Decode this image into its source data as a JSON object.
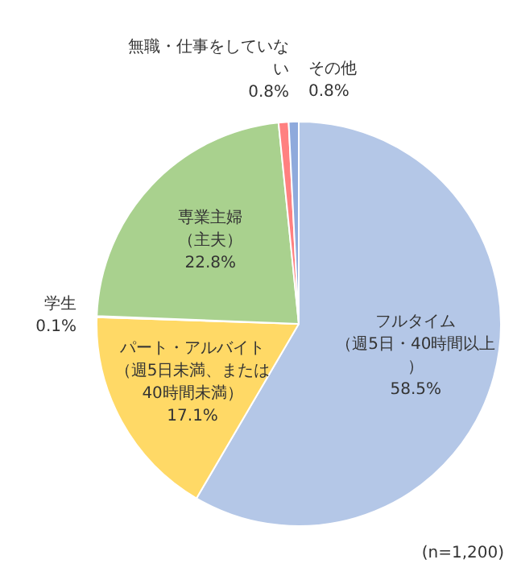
{
  "chart_data": {
    "type": "pie",
    "categories": [
      "フルタイム（週5日・40時間以上）",
      "パート・アルバイト（週5日未満、または40時間未満）",
      "学生",
      "専業主婦（主夫）",
      "無職・仕事をしていない",
      "その他"
    ],
    "values": [
      58.5,
      17.1,
      0.1,
      22.8,
      0.8,
      0.8
    ],
    "value_labels": [
      "58.5%",
      "17.1%",
      "0.1%",
      "22.8%",
      "0.8%",
      "0.8%"
    ],
    "colors": [
      "#b4c7e7",
      "#ffd966",
      "#f4b183",
      "#a9d18e",
      "#ff8080",
      "#8faadc"
    ],
    "legend": false,
    "annotations": [
      "(n=1,200)"
    ]
  }
}
